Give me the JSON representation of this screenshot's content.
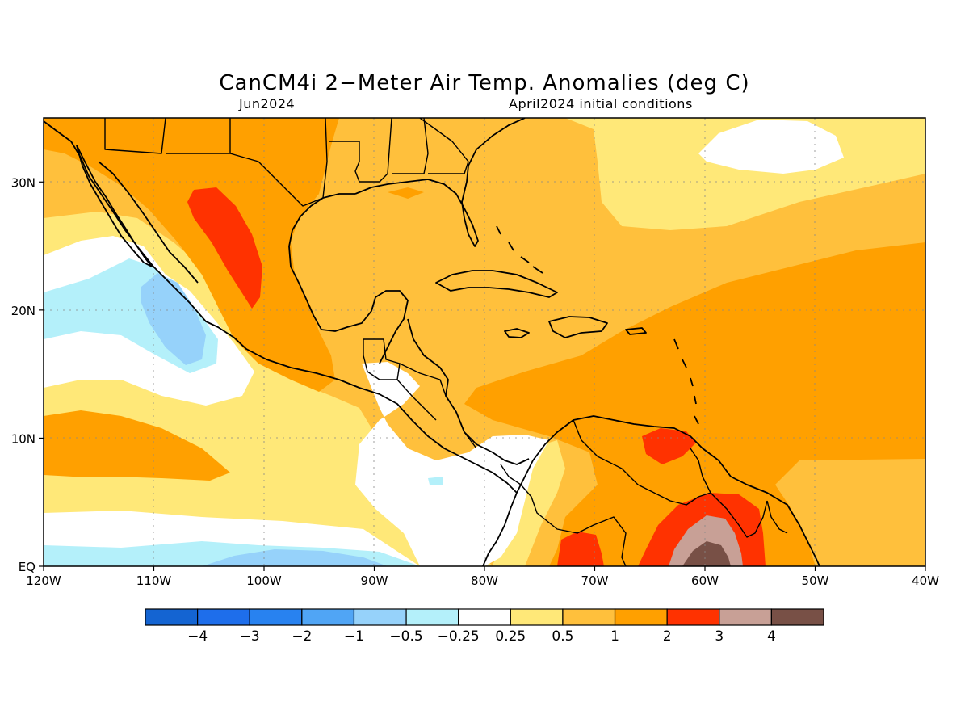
{
  "title": "CanCM4i 2−Meter Air Temp. Anomalies (deg C)",
  "valid_month": "Jun2024",
  "init_label": "April2024 initial conditions",
  "lon_ticks": [
    {
      "lon": -120,
      "label": "120W"
    },
    {
      "lon": -110,
      "label": "110W"
    },
    {
      "lon": -100,
      "label": "100W"
    },
    {
      "lon": -90,
      "label": "90W"
    },
    {
      "lon": -80,
      "label": "80W"
    },
    {
      "lon": -70,
      "label": "70W"
    },
    {
      "lon": -60,
      "label": "60W"
    },
    {
      "lon": -50,
      "label": "50W"
    },
    {
      "lon": -40,
      "label": "40W"
    }
  ],
  "lat_ticks": [
    {
      "lat": 0,
      "label": "EQ"
    },
    {
      "lat": 10,
      "label": "10N"
    },
    {
      "lat": 20,
      "label": "20N"
    },
    {
      "lat": 30,
      "label": "30N"
    }
  ],
  "extent": {
    "lon_min": -120,
    "lon_max": -40,
    "lat_min": 0,
    "lat_max": 35
  },
  "colorbar": {
    "colors": [
      "#1464d2",
      "#1e6eeb",
      "#2882f0",
      "#50a5f5",
      "#96d2fa",
      "#b4f0fa",
      "#ffffff",
      "#ffe878",
      "#ffc03c",
      "#ffa000",
      "#ff3200",
      "#c8a096",
      "#785046"
    ],
    "labels": [
      "−4",
      "−3",
      "−2",
      "−1",
      "−0.5",
      "−0.25",
      "0.25",
      "0.5",
      "1",
      "2",
      "3",
      "4"
    ]
  }
}
